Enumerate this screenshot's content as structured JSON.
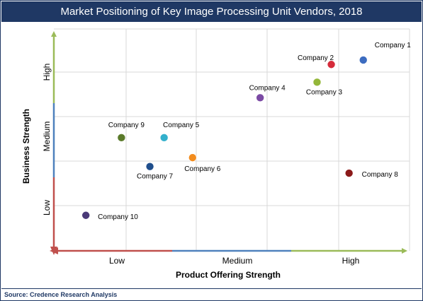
{
  "chart_data": {
    "type": "scatter",
    "title": "Market Positioning of Key Image Processing Unit Vendors, 2018",
    "xlabel": "Product Offering Strength",
    "ylabel": "Business Strength",
    "x_categories": [
      "Low",
      "Medium",
      "High"
    ],
    "y_categories": [
      "Low",
      "Medium",
      "High"
    ],
    "xlim": [
      0,
      10
    ],
    "ylim": [
      0,
      10
    ],
    "grid": true,
    "points": [
      {
        "label": "Company 1",
        "x": 8.7,
        "y": 8.6,
        "color": "#3c6cc0"
      },
      {
        "label": "Company 2",
        "x": 7.8,
        "y": 8.4,
        "color": "#d52b3a"
      },
      {
        "label": "Company 3",
        "x": 7.4,
        "y": 7.6,
        "color": "#94b73a"
      },
      {
        "label": "Company 4",
        "x": 5.8,
        "y": 6.9,
        "color": "#7b4aa4"
      },
      {
        "label": "Company 5",
        "x": 3.1,
        "y": 5.1,
        "color": "#33b0cc"
      },
      {
        "label": "Company 6",
        "x": 3.9,
        "y": 4.2,
        "color": "#f28c1e"
      },
      {
        "label": "Company 7",
        "x": 2.7,
        "y": 3.8,
        "color": "#1f4e8c"
      },
      {
        "label": "Company 8",
        "x": 8.3,
        "y": 3.5,
        "color": "#8b1a1a"
      },
      {
        "label": "Company 9",
        "x": 1.9,
        "y": 5.1,
        "color": "#5a7a2a"
      },
      {
        "label": "Company 10",
        "x": 0.9,
        "y": 1.6,
        "color": "#4a3a78"
      }
    ]
  },
  "source": "Source: Credence Research Analysis"
}
